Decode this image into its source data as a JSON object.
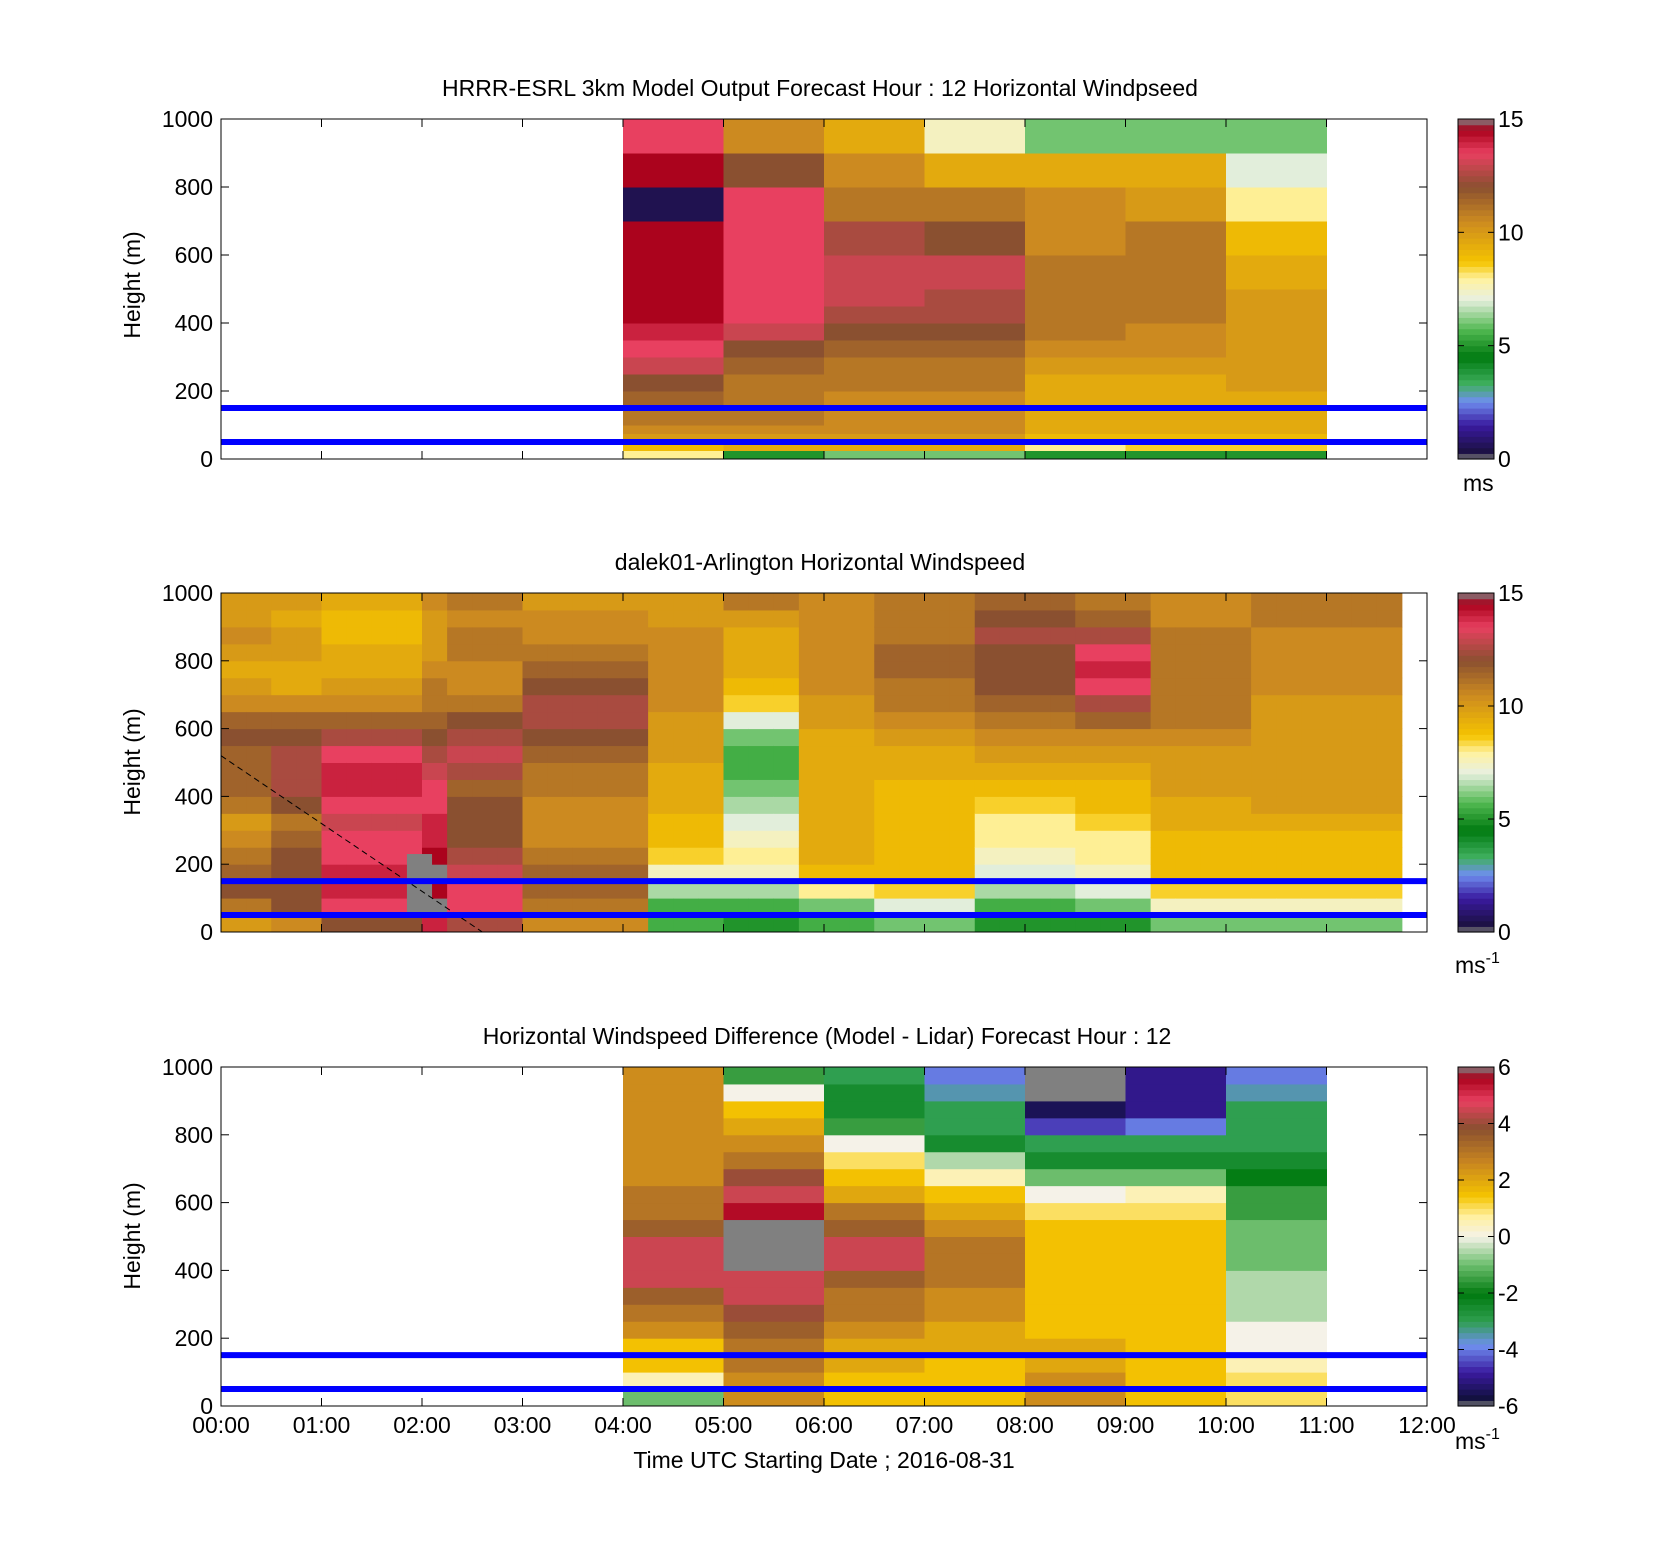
{
  "figure": {
    "xlabel": "Time UTC  Starting Date ; 2016-08-31",
    "xticks": [
      "00:00",
      "01:00",
      "02:00",
      "03:00",
      "04:00",
      "05:00",
      "06:00",
      "07:00",
      "08:00",
      "09:00",
      "10:00",
      "11:00",
      "12:00"
    ],
    "colors": {
      "overlay_line": "#0000ff",
      "axis": "#000000",
      "background": "#ffffff"
    }
  },
  "chart_data": [
    {
      "type": "heatmap",
      "title": "HRRR-ESRL 3km Model Output   Forecast Hour : 12 Horizontal Windpseed",
      "xlabel": "",
      "ylabel": "Height (m)",
      "xlim_hours": [
        0,
        12
      ],
      "ylim": [
        0,
        1000
      ],
      "yticks": [
        "0",
        "200",
        "400",
        "600",
        "800",
        "1000"
      ],
      "colorbar": {
        "min": 0,
        "max": 15,
        "ticks": [
          "0",
          "5",
          "10",
          "15"
        ],
        "unit": "ms"
      },
      "overlay_lines_m": [
        50,
        150
      ],
      "time_start_hours": 4,
      "time_step_hours": 1,
      "height_levels_m": [
        0,
        25,
        50,
        75,
        100,
        150,
        200,
        250,
        300,
        350,
        400,
        450,
        500,
        550,
        600,
        700,
        800,
        900,
        1000
      ],
      "values_by_hour": [
        [
          8,
          9,
          10,
          10.5,
          11,
          11.5,
          12,
          13,
          13.5,
          14,
          14.5,
          14.5,
          14.5,
          14.5,
          14.5,
          0.5,
          14.5,
          13.5
        ],
        [
          5,
          9.5,
          10,
          10.5,
          11,
          11,
          11,
          11.5,
          12,
          13,
          13.5,
          13.5,
          13.5,
          13.5,
          13.5,
          13.5,
          12,
          10.5
        ],
        [
          6,
          9.5,
          10,
          10.5,
          10.5,
          10.5,
          11,
          11,
          11.5,
          12,
          12.5,
          13,
          13,
          13,
          12.5,
          11,
          10.5,
          9.5
        ],
        [
          6,
          9.5,
          10,
          10.5,
          10.5,
          10.5,
          11,
          11,
          11.5,
          12,
          12.5,
          12.5,
          13,
          13,
          12,
          11,
          9.5,
          7.5
        ],
        [
          5,
          8,
          9,
          9.5,
          9.5,
          9.5,
          9.5,
          10,
          10.5,
          11,
          11,
          11,
          11,
          11,
          10.5,
          10.5,
          9.5,
          6
        ],
        [
          5,
          8.5,
          9,
          9.5,
          9.5,
          9.5,
          9.5,
          10,
          10.5,
          10.5,
          11,
          11,
          11,
          11,
          11,
          10,
          9.5,
          6
        ],
        [
          5,
          8.5,
          9,
          9.5,
          9.5,
          9.5,
          10,
          10,
          10,
          10,
          10,
          10,
          9.5,
          9.5,
          9,
          8,
          7,
          6
        ]
      ]
    },
    {
      "type": "heatmap",
      "title": "dalek01-Arlington  Horizontal Windspeed",
      "xlabel": "",
      "ylabel": "Height (m)",
      "xlim_hours": [
        0,
        12
      ],
      "ylim": [
        0,
        1000
      ],
      "yticks": [
        "0",
        "200",
        "400",
        "600",
        "800",
        "1000"
      ],
      "colorbar": {
        "min": 0,
        "max": 15,
        "ticks": [
          "0",
          "5",
          "10",
          "15"
        ],
        "unit": "ms",
        "unit_exponent": "-1"
      },
      "overlay_lines_m": [
        50,
        150
      ],
      "dashed_line": {
        "from_hours_m": [
          0,
          520
        ],
        "to_hours_m": [
          2.6,
          0
        ]
      },
      "time_step_hours": 0.25,
      "column_count": 47,
      "height_levels_m": [
        0,
        50,
        100,
        150,
        200,
        250,
        300,
        350,
        400,
        450,
        500,
        550,
        600,
        650,
        700,
        750,
        800,
        850,
        900,
        950,
        1000
      ],
      "profiles": [
        {
          "from_hours": 0,
          "to_hours": 0.6,
          "values": [
            10,
            11,
            12,
            11.5,
            11,
            10.5,
            10,
            11,
            11.5,
            11.5,
            11.5,
            12,
            11.5,
            10.5,
            10,
            9.5,
            10,
            10.5,
            10,
            10
          ]
        },
        {
          "from_hours": 0.6,
          "to_hours": 1.0,
          "values": [
            10.5,
            12,
            12,
            12,
            12,
            11.5,
            11,
            12,
            12.5,
            12.5,
            12.5,
            12,
            11.5,
            10.5,
            9.5,
            9.5,
            10,
            10,
            9.5,
            10
          ]
        },
        {
          "from_hours": 1.0,
          "to_hours": 1.9,
          "values": [
            12,
            13.5,
            14,
            14,
            13.5,
            13.5,
            13,
            13.5,
            14,
            14,
            13.5,
            12.5,
            11.5,
            10.5,
            10,
            9.5,
            9.5,
            9,
            9,
            9.5
          ]
        },
        {
          "from_hours": 1.9,
          "to_hours": 2.3,
          "values": [
            14,
            15,
            14.5,
            15,
            14.5,
            14,
            14,
            13.5,
            13.5,
            13,
            12.5,
            12,
            11.5,
            11,
            11,
            10.5,
            10,
            10,
            10,
            10.5
          ]
        },
        {
          "from_hours": 2.3,
          "to_hours": 3.0,
          "values": [
            12.5,
            13.5,
            13.5,
            13,
            12.5,
            12,
            12,
            12,
            11.5,
            12.5,
            13,
            12.5,
            12,
            11,
            10.5,
            10.5,
            11,
            11,
            10.5,
            11
          ]
        },
        {
          "from_hours": 3.0,
          "to_hours": 4.35,
          "values": [
            10.5,
            11,
            11.5,
            11.5,
            11,
            10.5,
            10.5,
            10.5,
            11,
            11,
            11.5,
            12,
            12.5,
            12.5,
            12,
            11.5,
            11,
            10.5,
            10.5,
            10
          ]
        },
        {
          "from_hours": 4.35,
          "to_hours": 5.0,
          "values": [
            5.5,
            5.5,
            6.5,
            7.5,
            8.5,
            9,
            9,
            9.5,
            9.5,
            9.5,
            10,
            10,
            10,
            10.5,
            10.5,
            10.5,
            10.5,
            10.5,
            10,
            10
          ]
        },
        {
          "from_hours": 5.0,
          "to_hours": 5.8,
          "values": [
            5,
            5.5,
            6.5,
            7.5,
            8,
            7.5,
            7,
            6.5,
            6,
            5.5,
            5.5,
            6,
            7,
            8.5,
            9,
            9.5,
            9.5,
            9.5,
            10,
            11
          ]
        },
        {
          "from_hours": 5.8,
          "to_hours": 6.4,
          "values": [
            5.5,
            6,
            8,
            9,
            9.5,
            9.5,
            9.5,
            9.5,
            9.5,
            9.5,
            9.5,
            9.5,
            10,
            10,
            10.5,
            10.5,
            10.5,
            10.5,
            10.5,
            10.5
          ]
        },
        {
          "from_hours": 6.4,
          "to_hours": 7.6,
          "values": [
            6,
            7,
            8.5,
            9,
            9,
            9,
            9,
            9,
            9,
            9.5,
            9.5,
            10,
            10.5,
            11,
            11,
            11.5,
            11.5,
            11,
            11,
            11
          ]
        },
        {
          "from_hours": 7.6,
          "to_hours": 8.4,
          "values": [
            5,
            5.5,
            6.5,
            7,
            7.5,
            8,
            8,
            8.5,
            9,
            9.5,
            10,
            10.5,
            11,
            11.5,
            12,
            12,
            12,
            12.5,
            12,
            11.5
          ]
        },
        {
          "from_hours": 8.4,
          "to_hours": 9.3,
          "values": [
            5,
            6,
            7,
            7.5,
            8,
            8,
            8.5,
            9,
            9,
            9.5,
            10,
            10.5,
            11.5,
            12.5,
            13.5,
            14,
            13.5,
            12.5,
            11.5,
            11
          ]
        },
        {
          "from_hours": 9.3,
          "to_hours": 10.3,
          "values": [
            6,
            7.5,
            8.5,
            9,
            9,
            9,
            9.5,
            9.5,
            10,
            10,
            10,
            10.5,
            11,
            11,
            11,
            11,
            11,
            11,
            10.5,
            10.5
          ]
        },
        {
          "from_hours": 10.3,
          "to_hours": 11.7,
          "values": [
            6,
            7.5,
            8.5,
            9,
            9,
            9,
            9.5,
            10,
            10,
            10,
            10,
            10,
            10,
            10,
            10.5,
            10.5,
            10.5,
            10.5,
            11,
            11
          ]
        }
      ],
      "gray_patch": {
        "from_hours": 1.85,
        "to_hours": 2.1,
        "range_m": [
          50,
          230
        ]
      }
    },
    {
      "type": "heatmap",
      "title": "Horizontal Windspeed Difference (Model - Lidar) Forecast Hour : 12",
      "xlabel": "Time UTC  Starting Date ; 2016-08-31",
      "ylabel": "Height (m)",
      "xlim_hours": [
        0,
        12
      ],
      "ylim": [
        0,
        1000
      ],
      "yticks": [
        "0",
        "200",
        "400",
        "600",
        "800",
        "1000"
      ],
      "colorbar": {
        "min": -6,
        "max": 6,
        "ticks": [
          "-6",
          "-4",
          "-2",
          "0",
          "2",
          "4",
          "6"
        ],
        "unit": "ms",
        "unit_exponent": "-1"
      },
      "overlay_lines_m": [
        50,
        150
      ],
      "time_start_hours": 4,
      "time_step_hours": 1,
      "height_levels_m": [
        0,
        50,
        100,
        150,
        200,
        250,
        300,
        350,
        400,
        450,
        500,
        550,
        600,
        650,
        700,
        750,
        800,
        850,
        900,
        950,
        1000
      ],
      "values_by_hour": [
        [
          -1,
          0.5,
          1.5,
          1.5,
          2.5,
          3,
          3.5,
          4.5,
          4.5,
          4.5,
          3.5,
          3,
          3,
          2.5,
          2.5,
          2.5,
          2.5,
          2.5,
          2.5,
          2.5
        ],
        [
          2.5,
          2.5,
          3,
          3,
          3.5,
          4,
          4.5,
          4.5,
          6.5,
          6.5,
          6.5,
          5.5,
          4.5,
          4,
          3,
          2.5,
          2,
          1.5,
          0,
          -1.5
        ],
        [
          1.5,
          1.5,
          2,
          2,
          2.5,
          3,
          3,
          3.5,
          4.5,
          4.5,
          3.5,
          3,
          2,
          1.5,
          1,
          0,
          -1.5,
          -2.5,
          -2.5,
          -3
        ],
        [
          1.5,
          1.5,
          1.5,
          2,
          2,
          2.5,
          2.5,
          3,
          3,
          3,
          2.5,
          2,
          1.5,
          0.5,
          -0.5,
          -2.5,
          -3,
          -3,
          -3.5,
          -4
        ],
        [
          2.5,
          2.5,
          2,
          2,
          1.5,
          1.5,
          1.5,
          1.5,
          1.5,
          1.5,
          1.5,
          1,
          0,
          -1,
          -2.5,
          -3,
          -4.5,
          -5.5,
          -6.5,
          -6.5
        ],
        [
          1.5,
          1.5,
          1.5,
          1.5,
          1.5,
          1.5,
          1.5,
          1.5,
          1.5,
          1.5,
          1.5,
          1,
          0.5,
          -1,
          -2.5,
          -3,
          -4,
          -5,
          -5,
          -5
        ],
        [
          1,
          1,
          0.5,
          0,
          0,
          -0.5,
          -0.5,
          -0.5,
          -1,
          -1,
          -1,
          -1.5,
          -1.5,
          -2,
          -2.5,
          -3,
          -3,
          -3,
          -3.5,
          -4
        ]
      ]
    }
  ]
}
